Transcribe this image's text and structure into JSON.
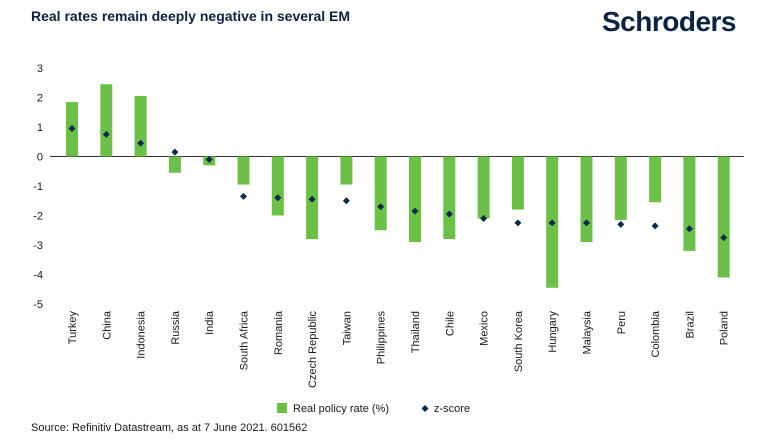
{
  "header": {
    "title": "Real rates remain deeply negative in several EM",
    "brand": "Schroders"
  },
  "footer": {
    "source": "Source: Refinitiv Datastream, as at 7 June 2021. 601562"
  },
  "colors": {
    "bar": "#6cc04a",
    "marker": "#0b2a4a",
    "title": "#0b2240"
  },
  "chart_data": {
    "type": "bar",
    "categories": [
      "Turkey",
      "China",
      "Indonesia",
      "Russia",
      "India",
      "South Africa",
      "Romania",
      "Czech Republic",
      "Taiwan",
      "Philippines",
      "Thailand",
      "Chile",
      "Mexico",
      "South Korea",
      "Hungary",
      "Malaysia",
      "Peru",
      "Colombia",
      "Brazil",
      "Poland"
    ],
    "series": [
      {
        "name": "Real policy rate (%)",
        "kind": "bar",
        "values": [
          1.85,
          2.45,
          2.05,
          -0.55,
          -0.3,
          -0.95,
          -2.0,
          -2.8,
          -0.95,
          -2.5,
          -2.9,
          -2.8,
          -2.1,
          -1.8,
          -4.45,
          -2.9,
          -2.15,
          -1.55,
          -3.2,
          -4.1
        ]
      },
      {
        "name": "z-score",
        "kind": "marker",
        "values": [
          0.95,
          0.75,
          0.45,
          0.15,
          -0.1,
          -1.35,
          -1.4,
          -1.45,
          -1.5,
          -1.7,
          -1.85,
          -1.95,
          -2.1,
          -2.25,
          -2.25,
          -2.25,
          -2.3,
          -2.35,
          -2.45,
          -2.75
        ]
      }
    ],
    "ylim": [
      -5,
      3
    ],
    "yticks": [
      3,
      2,
      1,
      0,
      -1,
      -2,
      -3,
      -4,
      -5
    ],
    "legend": {
      "position": "bottom",
      "items": [
        "Real policy rate (%)",
        "z-score"
      ]
    },
    "grid": false
  }
}
